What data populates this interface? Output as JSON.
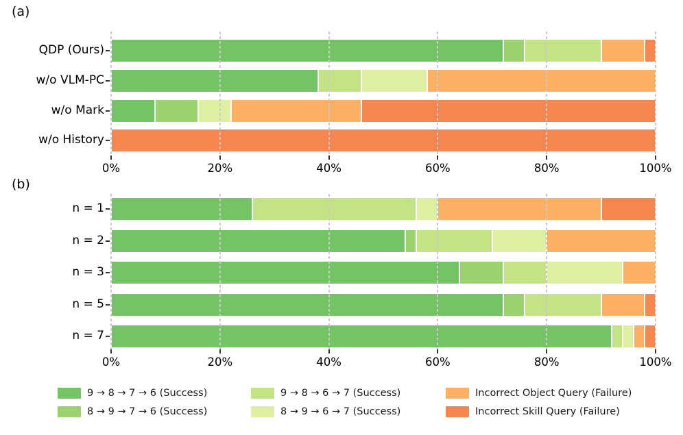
{
  "figure": {
    "background": "#ffffff",
    "x_axis_format": "percent",
    "grid_color": "#c9c9c9",
    "grid_style": "dashed"
  },
  "chart_data": [
    {
      "type": "bar",
      "stacked": true,
      "orientation": "horizontal",
      "panel_label": "(a)",
      "categories": [
        "QDP (Ours)",
        "w/o VLM-PC",
        "w/o Mark",
        "w/o History"
      ],
      "series": [
        {
          "name": "9 → 8 → 7 → 6 (Success)",
          "color": "#74c365",
          "values": [
            72,
            38,
            8,
            0
          ]
        },
        {
          "name": "8 → 9 → 7 → 6 (Success)",
          "color": "#9ad36e",
          "values": [
            4,
            0,
            8,
            0
          ]
        },
        {
          "name": "9 → 8 → 6 → 7 (Success)",
          "color": "#c3e384",
          "values": [
            14,
            8,
            0,
            0
          ]
        },
        {
          "name": "8 → 9 → 6 → 7 (Success)",
          "color": "#dfefa1",
          "values": [
            0,
            12,
            6,
            0
          ]
        },
        {
          "name": "Incorrect Object Query (Failure)",
          "color": "#fbb063",
          "values": [
            8,
            42,
            24,
            0
          ]
        },
        {
          "name": "Incorrect Skill Query (Failure)",
          "color": "#f6864f",
          "values": [
            2,
            0,
            54,
            100
          ]
        }
      ],
      "xlim": [
        0,
        100
      ],
      "x_tick_labels": [
        "0%",
        "20%",
        "40%",
        "60%",
        "80%",
        "100%"
      ],
      "grid": "dashed-vertical-over-bars",
      "legend_position": "bottom-shared"
    },
    {
      "type": "bar",
      "stacked": true,
      "orientation": "horizontal",
      "panel_label": "(b)",
      "categories": [
        "n = 1",
        "n = 2",
        "n = 3",
        "n = 5",
        "n = 7"
      ],
      "series": [
        {
          "name": "9 → 8 → 7 → 6 (Success)",
          "color": "#74c365",
          "values": [
            26,
            54,
            64,
            72,
            92
          ]
        },
        {
          "name": "8 → 9 → 7 → 6 (Success)",
          "color": "#9ad36e",
          "values": [
            0,
            2,
            8,
            4,
            0
          ]
        },
        {
          "name": "9 → 8 → 6 → 7 (Success)",
          "color": "#c3e384",
          "values": [
            30,
            14,
            8,
            14,
            2
          ]
        },
        {
          "name": "8 → 9 → 6 → 7 (Success)",
          "color": "#dfefa1",
          "values": [
            4,
            10,
            14,
            0,
            2
          ]
        },
        {
          "name": "Incorrect Object Query (Failure)",
          "color": "#fbb063",
          "values": [
            30,
            20,
            6,
            8,
            2
          ]
        },
        {
          "name": "Incorrect Skill Query (Failure)",
          "color": "#f6864f",
          "values": [
            10,
            0,
            0,
            2,
            2
          ]
        }
      ],
      "xlim": [
        0,
        100
      ],
      "x_tick_labels": [
        "0%",
        "20%",
        "40%",
        "60%",
        "80%",
        "100%"
      ],
      "grid": "dashed-vertical-over-bars",
      "legend_position": "bottom-shared"
    }
  ],
  "legend": {
    "columns": 3,
    "entries": [
      {
        "label": "9 → 8 → 7 → 6 (Success)",
        "color": "#74c365"
      },
      {
        "label": "8 → 9 → 7 → 6 (Success)",
        "color": "#9ad36e"
      },
      {
        "label": "9 → 8 → 6 → 7 (Success)",
        "color": "#c3e384"
      },
      {
        "label": "8 → 9 → 6 → 7 (Success)",
        "color": "#dfefa1"
      },
      {
        "label": "Incorrect Object Query (Failure)",
        "color": "#fbb063"
      },
      {
        "label": "Incorrect Skill Query (Failure)",
        "color": "#f6864f"
      }
    ]
  }
}
